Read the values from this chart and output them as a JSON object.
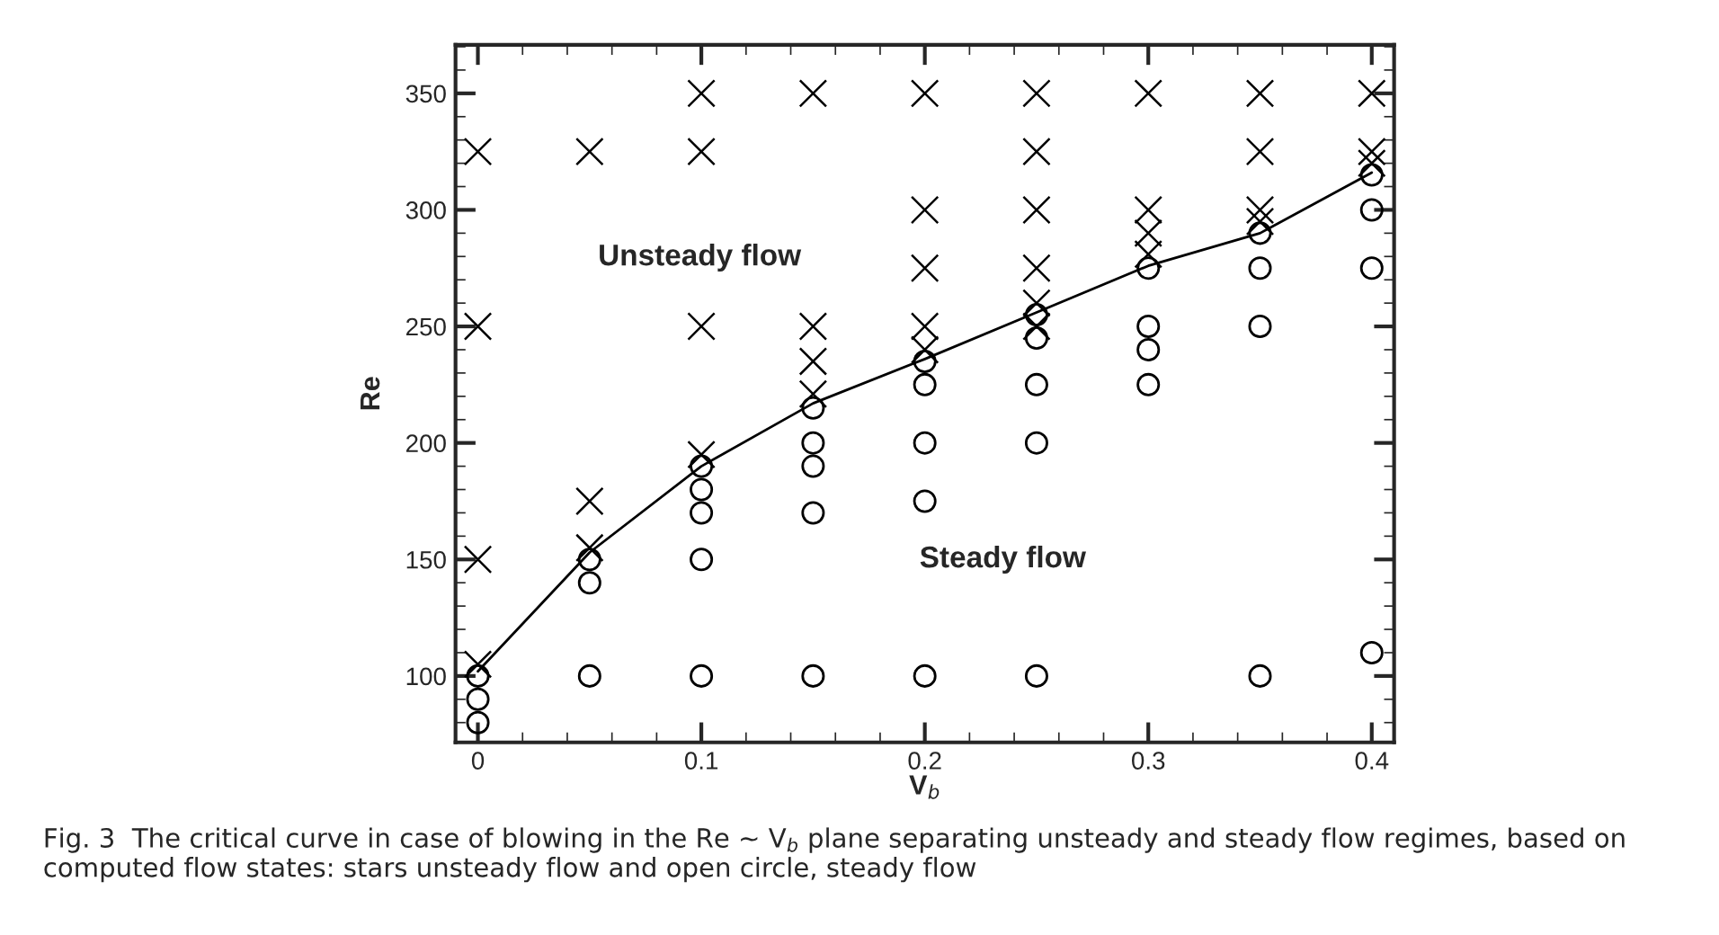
{
  "chart_data": {
    "type": "scatter",
    "xlabel": "V$_{b}$",
    "ylabel": "Re",
    "xlim": [
      -0.01,
      0.41
    ],
    "ylim": [
      71.5,
      370.8
    ],
    "xticks": [
      0,
      0.1,
      0.2,
      0.3,
      0.4
    ],
    "yticks": [
      100,
      150,
      200,
      250,
      300,
      350
    ],
    "grid": false,
    "legend": false,
    "series": [
      {
        "type": "scatter",
        "marker": "cross",
        "color": "#000000",
        "x": [
          0,
          0,
          0,
          0,
          0.05,
          0.05,
          0.05,
          0.1,
          0.1,
          0.1,
          0.1,
          0.15,
          0.15,
          0.15,
          0.15,
          0.2,
          0.2,
          0.2,
          0.2,
          0.2,
          0.25,
          0.25,
          0.25,
          0.25,
          0.25,
          0.25,
          0.3,
          0.3,
          0.3,
          0.3,
          0.35,
          0.35,
          0.35,
          0.35,
          0.4,
          0.4,
          0.4
        ],
        "values": [
          325,
          250,
          150,
          105,
          325,
          175,
          155,
          350,
          325,
          250,
          195,
          350,
          250,
          235,
          221,
          350,
          300,
          275,
          250,
          240,
          350,
          325,
          300,
          275,
          250,
          260,
          350,
          300,
          290,
          281,
          350,
          325,
          300,
          295,
          350,
          325,
          320
        ]
      },
      {
        "type": "scatter",
        "marker": "circle",
        "color": "#000000",
        "x": [
          0,
          0,
          0,
          0.05,
          0.05,
          0.05,
          0.1,
          0.1,
          0.1,
          0.1,
          0.1,
          0.15,
          0.15,
          0.15,
          0.15,
          0.15,
          0.2,
          0.2,
          0.2,
          0.2,
          0.2,
          0.25,
          0.25,
          0.25,
          0.25,
          0.25,
          0.3,
          0.3,
          0.3,
          0.3,
          0.35,
          0.35,
          0.35,
          0.35,
          0.4,
          0.4,
          0.4,
          0.4
        ],
        "values": [
          100,
          90,
          80,
          150,
          140,
          100,
          190,
          180,
          170,
          150,
          100,
          215,
          200,
          190,
          170,
          100,
          235,
          225,
          200,
          175,
          100,
          255,
          245,
          225,
          200,
          100,
          275,
          250,
          240,
          225,
          290,
          275,
          250,
          100,
          315,
          300,
          275,
          110
        ]
      },
      {
        "type": "line",
        "marker": "none",
        "line_style": "solid",
        "color": "#000000",
        "x": [
          0,
          0.05,
          0.1,
          0.15,
          0.2,
          0.25,
          0.3,
          0.35,
          0.4
        ],
        "values": [
          102,
          153,
          190,
          217,
          236,
          256,
          276,
          290,
          316
        ]
      }
    ],
    "annotations": [
      "Unsteady flow",
      "Steady flow",
      "Fig. 3  The critical curve in case of blowing in the Re ∼ V$_{b}$ plane separating unsteady and steady flow regimes, based on computed flow states: stars unsteady flow and open circle, steady flow"
    ]
  }
}
